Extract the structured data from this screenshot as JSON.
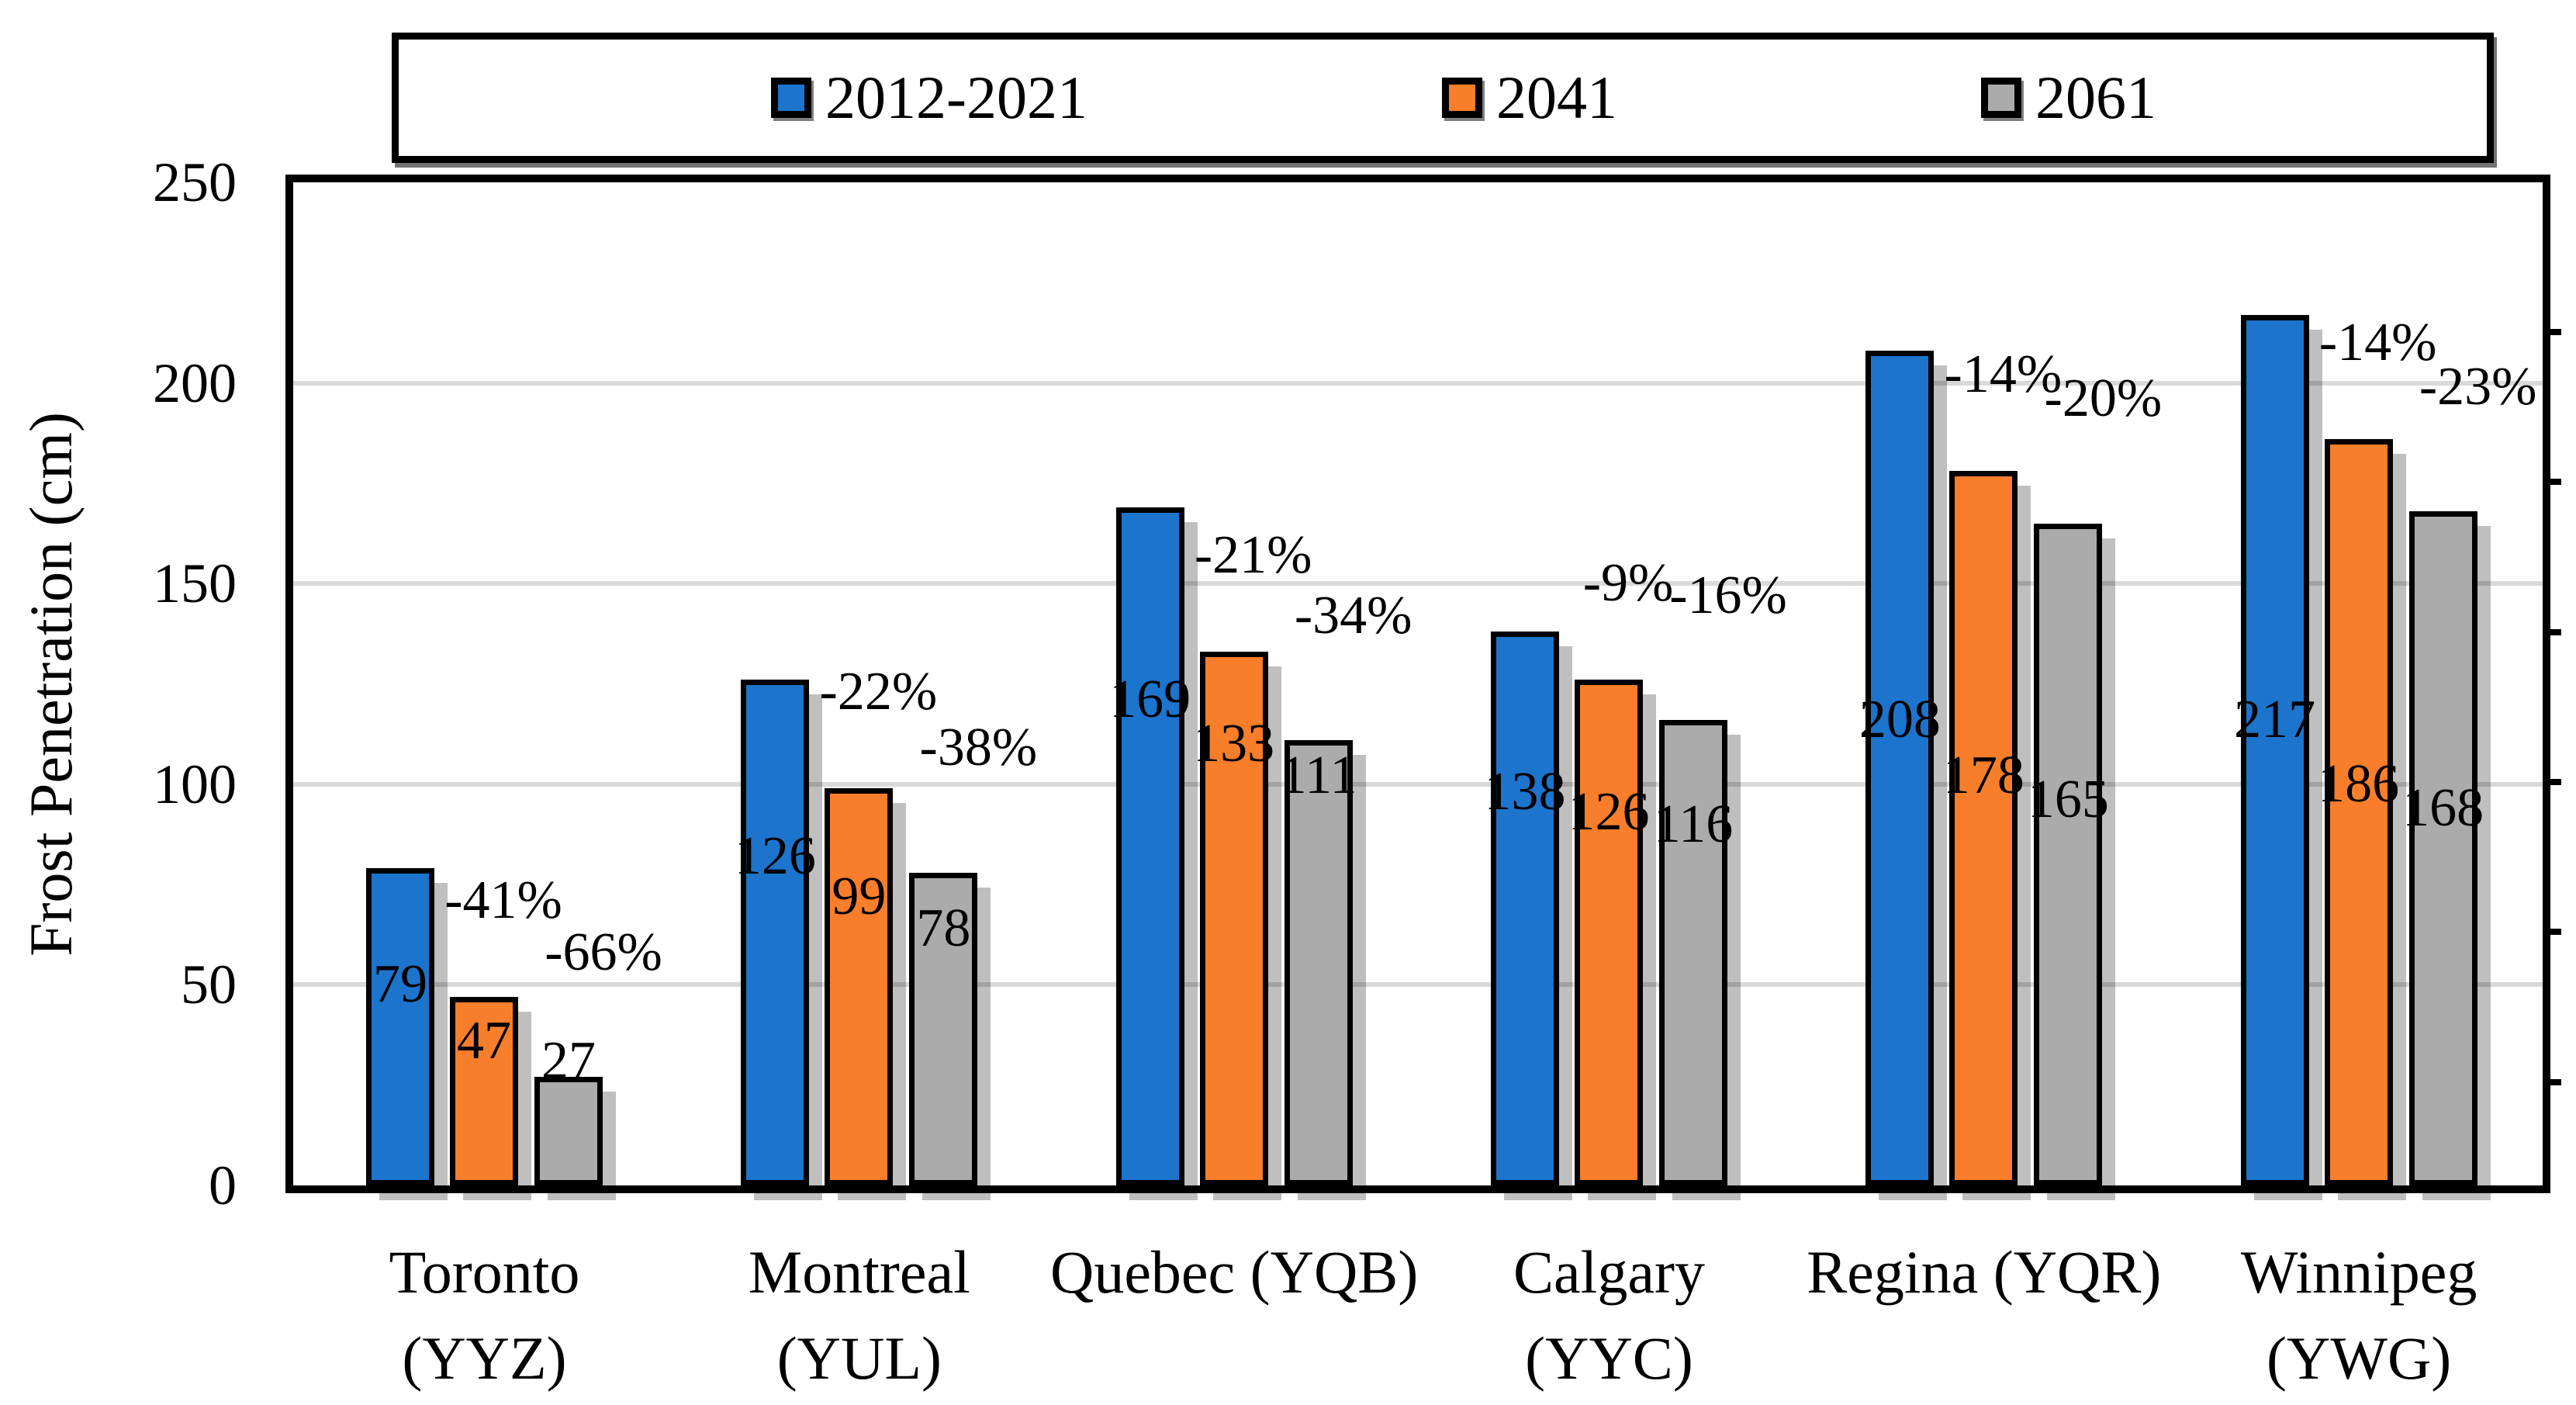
{
  "figure": {
    "background": "#FFFFFF"
  },
  "legend": {
    "items": [
      {
        "label": "2012-2021",
        "color": "#1C74CC"
      },
      {
        "label": "2041",
        "color": "#F87E2B"
      },
      {
        "label": "2061",
        "color": "#ABABAB"
      }
    ]
  },
  "y_axis": {
    "title": "Frost Penetration (cm)",
    "tick_labels": [
      "250",
      "200",
      "150",
      "100",
      "50",
      "0"
    ],
    "tick_values": [
      250,
      200,
      150,
      100,
      50,
      0
    ]
  },
  "x_axis": {
    "labels": [
      {
        "line1": "Toronto",
        "line2": "(YYZ)"
      },
      {
        "line1": "Montreal",
        "line2": "(YUL)"
      },
      {
        "line1": "Quebec (YQB)",
        "line2": ""
      },
      {
        "line1": "Calgary",
        "line2": "(YYC)"
      },
      {
        "line1": "Regina (YQR)",
        "line2": ""
      },
      {
        "line1": "Winnipeg",
        "line2": "(YWG)"
      }
    ]
  },
  "chart_data": {
    "type": "bar",
    "title": "",
    "xlabel": "",
    "ylabel": "Frost Penetration (cm)",
    "ylim": [
      0,
      250
    ],
    "yticks": [
      0,
      50,
      100,
      150,
      200,
      250
    ],
    "grid": true,
    "gridline_color": "#D9D9D9",
    "legend_position": "top",
    "bar_outline_color": "#000000",
    "categories": [
      "Toronto (YYZ)",
      "Montreal (YUL)",
      "Quebec (YQB)",
      "Calgary (YYC)",
      "Regina (YQR)",
      "Winnipeg (YWG)"
    ],
    "series": [
      {
        "name": "2012-2021",
        "color": "#1C74CC",
        "values": [
          79,
          126,
          169,
          138,
          208,
          217
        ]
      },
      {
        "name": "2041",
        "color": "#F87E2B",
        "values": [
          47,
          99,
          133,
          126,
          178,
          186
        ],
        "pct_change_labels": [
          "-41%",
          "-22%",
          "-21%",
          "-9%",
          "-14%",
          "-14%"
        ]
      },
      {
        "name": "2061",
        "color": "#ABABAB",
        "values": [
          27,
          78,
          111,
          116,
          165,
          168
        ],
        "pct_change_labels": [
          "-66%",
          "-38%",
          "-34%",
          "-16%",
          "-20%",
          "-23%"
        ]
      }
    ]
  }
}
